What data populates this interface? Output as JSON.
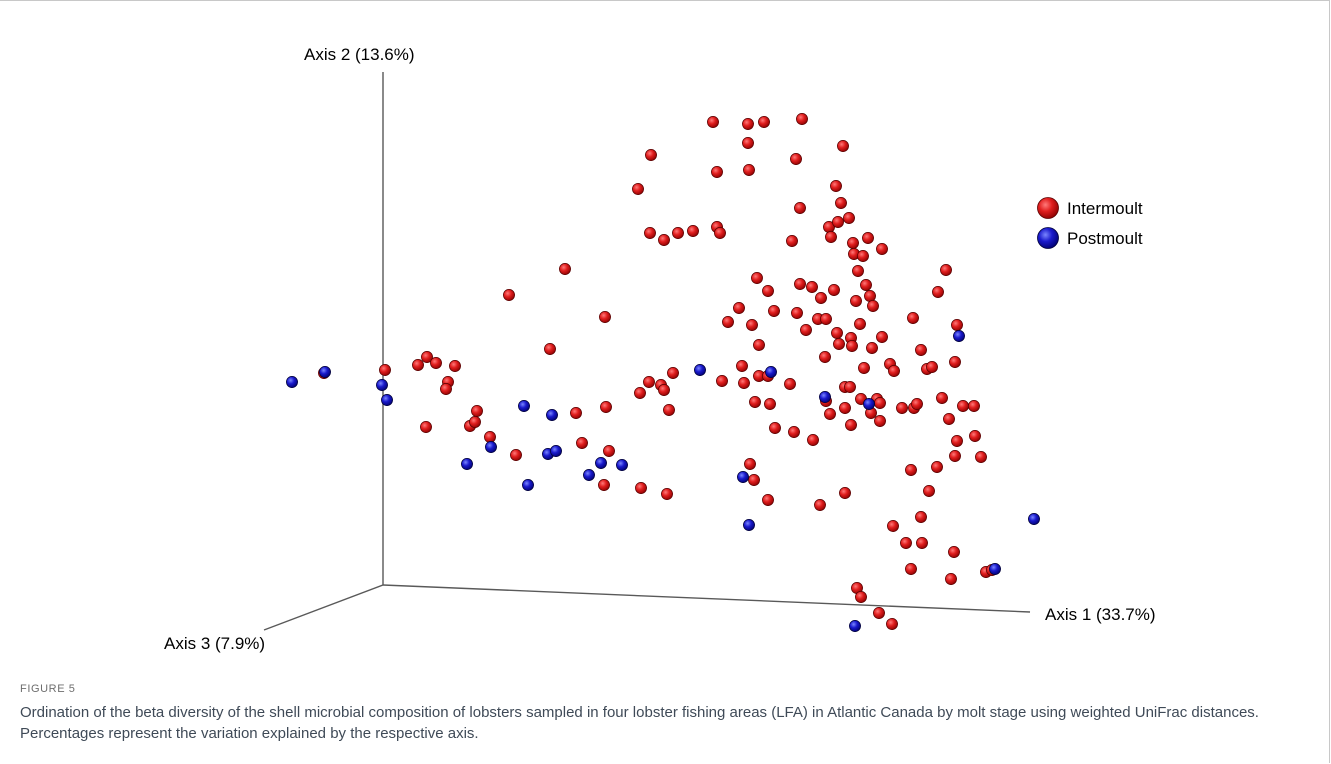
{
  "figure": {
    "number": "FIGURE 5",
    "caption": "Ordination of the beta diversity of the shell microbial composition of lobsters sampled in four lobster fishing areas (LFA) in Atlantic Canada by molt stage using weighted UniFrac distances. Percentages represent the variation explained by the respective axis."
  },
  "chart_data": {
    "type": "scatter",
    "subtype": "3d-pcoa-ordination",
    "axes": {
      "x": "Axis 1 (33.7%)",
      "y": "Axis 2 (13.6%)",
      "z": "Axis 3 (7.9%)"
    },
    "grid": false,
    "legend_position": "top-right",
    "colors": {
      "Intermoult": "#e01e1e",
      "Postmoult": "#1a1acc"
    },
    "series": [
      {
        "name": "Intermoult",
        "points": [
          [
            713,
            122
          ],
          [
            748,
            124
          ],
          [
            764,
            122
          ],
          [
            802,
            119
          ],
          [
            651,
            155
          ],
          [
            748,
            143
          ],
          [
            796,
            159
          ],
          [
            843,
            146
          ],
          [
            638,
            189
          ],
          [
            717,
            172
          ],
          [
            749,
            170
          ],
          [
            836,
            186
          ],
          [
            841,
            203
          ],
          [
            800,
            208
          ],
          [
            650,
            233
          ],
          [
            664,
            240
          ],
          [
            678,
            233
          ],
          [
            693,
            231
          ],
          [
            717,
            227
          ],
          [
            720,
            233
          ],
          [
            792,
            241
          ],
          [
            829,
            227
          ],
          [
            838,
            222
          ],
          [
            849,
            218
          ],
          [
            831,
            237
          ],
          [
            868,
            238
          ],
          [
            882,
            249
          ],
          [
            853,
            243
          ],
          [
            854,
            254
          ],
          [
            863,
            256
          ],
          [
            565,
            269
          ],
          [
            509,
            295
          ],
          [
            858,
            271
          ],
          [
            946,
            270
          ],
          [
            757,
            278
          ],
          [
            768,
            291
          ],
          [
            800,
            284
          ],
          [
            812,
            287
          ],
          [
            834,
            290
          ],
          [
            866,
            285
          ],
          [
            870,
            296
          ],
          [
            821,
            298
          ],
          [
            938,
            292
          ],
          [
            739,
            308
          ],
          [
            605,
            317
          ],
          [
            728,
            322
          ],
          [
            752,
            325
          ],
          [
            774,
            311
          ],
          [
            797,
            313
          ],
          [
            818,
            319
          ],
          [
            826,
            319
          ],
          [
            856,
            301
          ],
          [
            873,
            306
          ],
          [
            837,
            333
          ],
          [
            851,
            338
          ],
          [
            882,
            337
          ],
          [
            860,
            324
          ],
          [
            550,
            349
          ],
          [
            759,
            345
          ],
          [
            806,
            330
          ],
          [
            839,
            344
          ],
          [
            852,
            346
          ],
          [
            872,
            348
          ],
          [
            913,
            318
          ],
          [
            957,
            325
          ],
          [
            921,
            350
          ],
          [
            385,
            370
          ],
          [
            418,
            365
          ],
          [
            427,
            357
          ],
          [
            436,
            363
          ],
          [
            455,
            366
          ],
          [
            448,
            382
          ],
          [
            446,
            389
          ],
          [
            324,
            373
          ],
          [
            673,
            373
          ],
          [
            649,
            382
          ],
          [
            661,
            385
          ],
          [
            664,
            390
          ],
          [
            640,
            393
          ],
          [
            742,
            366
          ],
          [
            744,
            383
          ],
          [
            759,
            376
          ],
          [
            768,
            376
          ],
          [
            790,
            384
          ],
          [
            722,
            381
          ],
          [
            825,
            357
          ],
          [
            845,
            387
          ],
          [
            850,
            387
          ],
          [
            864,
            368
          ],
          [
            890,
            364
          ],
          [
            894,
            371
          ],
          [
            927,
            369
          ],
          [
            932,
            367
          ],
          [
            955,
            362
          ],
          [
            477,
            411
          ],
          [
            606,
            407
          ],
          [
            669,
            410
          ],
          [
            576,
            413
          ],
          [
            755,
            402
          ],
          [
            770,
            404
          ],
          [
            826,
            401
          ],
          [
            830,
            414
          ],
          [
            845,
            408
          ],
          [
            861,
            399
          ],
          [
            877,
            399
          ],
          [
            880,
            403
          ],
          [
            871,
            413
          ],
          [
            880,
            421
          ],
          [
            902,
            408
          ],
          [
            914,
            408
          ],
          [
            917,
            404
          ],
          [
            942,
            398
          ],
          [
            963,
            406
          ],
          [
            974,
            406
          ],
          [
            470,
            426
          ],
          [
            475,
            422
          ],
          [
            426,
            427
          ],
          [
            490,
            437
          ],
          [
            775,
            428
          ],
          [
            794,
            432
          ],
          [
            813,
            440
          ],
          [
            851,
            425
          ],
          [
            949,
            419
          ],
          [
            957,
            441
          ],
          [
            975,
            436
          ],
          [
            582,
            443
          ],
          [
            609,
            451
          ],
          [
            516,
            455
          ],
          [
            955,
            456
          ],
          [
            981,
            457
          ],
          [
            911,
            470
          ],
          [
            937,
            467
          ],
          [
            750,
            464
          ],
          [
            604,
            485
          ],
          [
            641,
            488
          ],
          [
            667,
            494
          ],
          [
            754,
            480
          ],
          [
            768,
            500
          ],
          [
            820,
            505
          ],
          [
            845,
            493
          ],
          [
            929,
            491
          ],
          [
            893,
            526
          ],
          [
            921,
            517
          ],
          [
            906,
            543
          ],
          [
            922,
            543
          ],
          [
            954,
            552
          ],
          [
            911,
            569
          ],
          [
            951,
            579
          ],
          [
            986,
            572
          ],
          [
            992,
            570
          ],
          [
            857,
            588
          ],
          [
            861,
            597
          ],
          [
            879,
            613
          ],
          [
            892,
            624
          ]
        ]
      },
      {
        "name": "Postmoult",
        "points": [
          [
            292,
            382
          ],
          [
            325,
            372
          ],
          [
            382,
            385
          ],
          [
            387,
            400
          ],
          [
            959,
            336
          ],
          [
            700,
            370
          ],
          [
            771,
            372
          ],
          [
            825,
            397
          ],
          [
            869,
            404
          ],
          [
            524,
            406
          ],
          [
            552,
            415
          ],
          [
            491,
            447
          ],
          [
            548,
            454
          ],
          [
            556,
            451
          ],
          [
            467,
            464
          ],
          [
            601,
            463
          ],
          [
            622,
            465
          ],
          [
            589,
            475
          ],
          [
            528,
            485
          ],
          [
            743,
            477
          ],
          [
            749,
            525
          ],
          [
            995,
            569
          ],
          [
            1034,
            519
          ],
          [
            855,
            626
          ]
        ]
      }
    ]
  },
  "legend": [
    {
      "label": "Intermoult",
      "color": "#e01e1e"
    },
    {
      "label": "Postmoult",
      "color": "#1a1acc"
    }
  ]
}
